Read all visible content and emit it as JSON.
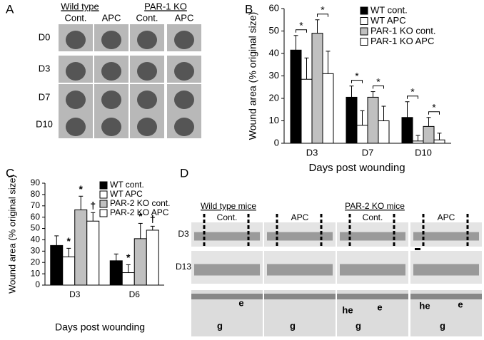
{
  "panels": {
    "a": {
      "panel_label": "A",
      "groups": [
        "Wild type",
        "PAR-1 KO"
      ],
      "columns": [
        "Cont.",
        "APC",
        "Cont.",
        "APC"
      ],
      "rows": [
        "D0",
        "D3",
        "D7",
        "D10"
      ]
    },
    "d": {
      "panel_label": "D",
      "groups": [
        "Wild type mice",
        "PAR-2 KO mice"
      ],
      "columns": [
        "Cont.",
        "APC",
        "Cont.",
        "APC"
      ],
      "rows": [
        "D3",
        "D13"
      ],
      "tissue_labels": [
        [
          "e",
          "g"
        ],
        [
          "g"
        ],
        [
          "he",
          "e",
          "g"
        ],
        [
          "he",
          "e",
          "g"
        ]
      ]
    }
  },
  "chart_data": [
    {
      "type": "bar",
      "panel_label": "B",
      "xlabel": "Days post wounding",
      "ylabel": "Wound area (% original size)",
      "categories": [
        "D3",
        "D7",
        "D10"
      ],
      "ylim": [
        0,
        60
      ],
      "yticks": [
        0,
        10,
        20,
        30,
        40,
        50,
        60
      ],
      "legend": "upper right",
      "annotation_brackets": true,
      "series": [
        {
          "name": "WT cont.",
          "color": "#000000",
          "values": [
            41.5,
            20.5,
            11.5
          ],
          "errors": [
            6.5,
            5,
            7
          ]
        },
        {
          "name": "WT APC",
          "color": "#ffffff",
          "values": [
            28.5,
            8,
            1
          ],
          "errors": [
            9.5,
            6.5,
            2.5
          ],
          "annotations": [
            "*",
            "*",
            "*"
          ]
        },
        {
          "name": "PAR-1 KO cont.",
          "color": "#c0c0c0",
          "values": [
            49,
            20.5,
            7.5
          ],
          "errors": [
            6,
            2.5,
            4
          ]
        },
        {
          "name": "PAR-1 KO APC",
          "color": "#ffffff",
          "values": [
            31,
            10,
            1.5
          ],
          "errors": [
            10,
            6.5,
            3
          ],
          "annotations": [
            "*",
            "*",
            "*"
          ]
        }
      ]
    },
    {
      "type": "bar",
      "panel_label": "C",
      "xlabel": "Days post wounding",
      "ylabel": "Wound area (% original size)",
      "categories": [
        "D3",
        "D6"
      ],
      "ylim": [
        0,
        90
      ],
      "yticks": [
        0,
        10,
        20,
        30,
        40,
        50,
        60,
        70,
        80,
        90
      ],
      "legend": "upper right",
      "annotation_brackets": false,
      "series": [
        {
          "name": "WT cont.",
          "color": "#000000",
          "values": [
            35,
            21.5
          ],
          "errors": [
            8.5,
            6
          ]
        },
        {
          "name": "WT APC",
          "color": "#ffffff",
          "values": [
            25,
            11
          ],
          "errors": [
            7.5,
            7
          ],
          "annotations": [
            "*",
            "*"
          ]
        },
        {
          "name": "PAR-2 KO cont.",
          "color": "#c0c0c0",
          "values": [
            66.5,
            41
          ],
          "errors": [
            12,
            13.5
          ],
          "annotations": [
            "*",
            "*"
          ]
        },
        {
          "name": "PAR-2 KO APC",
          "color": "#ffffff",
          "values": [
            56.5,
            48.5
          ],
          "errors": [
            7.5,
            3.5
          ],
          "annotations": [
            "†",
            "†"
          ]
        }
      ]
    }
  ]
}
